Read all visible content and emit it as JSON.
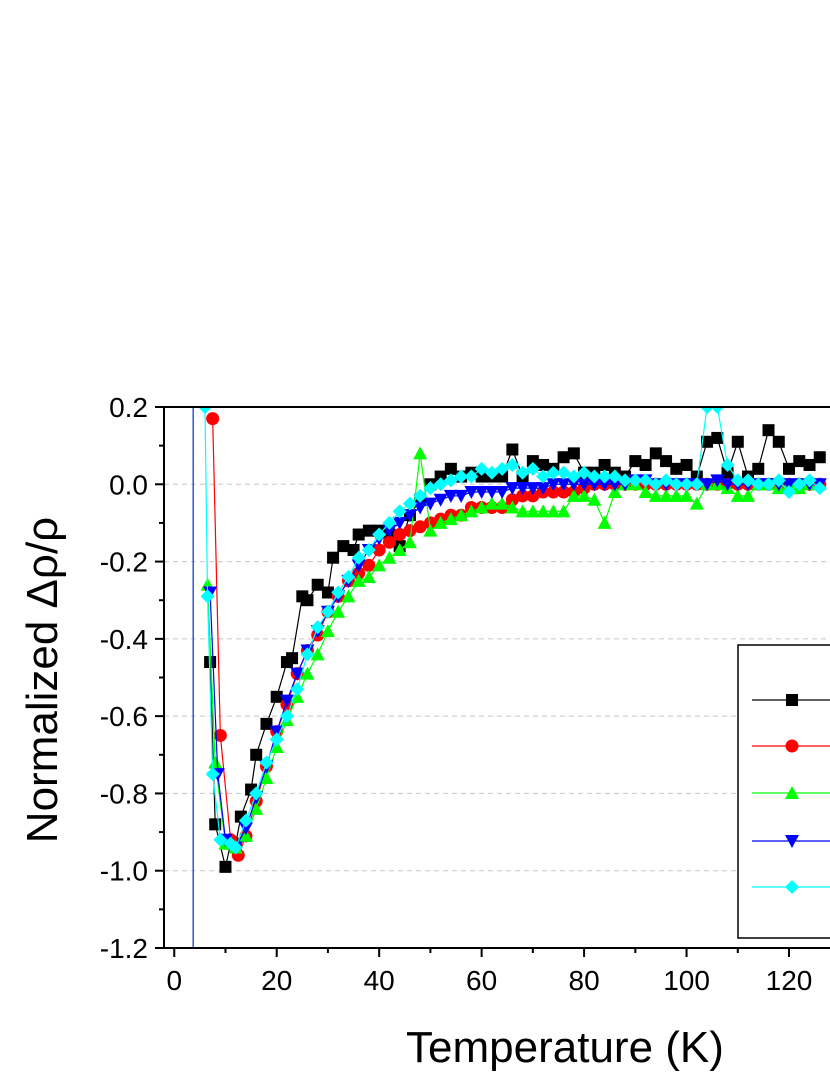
{
  "chart_data": {
    "type": "line",
    "xlabel": "Temperature (K)",
    "ylabel": "Normalized Δρ/ρ",
    "xlim": [
      -2,
      128
    ],
    "ylim": [
      -1.2,
      0.2
    ],
    "x_ticks": [
      "0",
      "20",
      "40",
      "60",
      "80",
      "100",
      "120"
    ],
    "y_ticks": [
      "0.2",
      "0.0",
      "-0.2",
      "-0.4",
      "-0.6",
      "-0.8",
      "-1.0",
      "-1.2"
    ],
    "grid": "horizontal dashed at major y ticks",
    "vline_x": 3.7,
    "legend_position": "right, partially cropped",
    "series": [
      {
        "color": "#000000",
        "marker": "square",
        "line_color": "#000000",
        "x": [
          7,
          8,
          10,
          11,
          12,
          13,
          15,
          16,
          18,
          20,
          22,
          23,
          25,
          26,
          28,
          30,
          31,
          33,
          35,
          36,
          38,
          40,
          42,
          44,
          46,
          48,
          50,
          52,
          54,
          56,
          58,
          60,
          62,
          64,
          66,
          68,
          70,
          72,
          74,
          76,
          78,
          80,
          82,
          84,
          86,
          88,
          90,
          92,
          94,
          96,
          98,
          100,
          102,
          104,
          106,
          108,
          110,
          112,
          114,
          116,
          118,
          120,
          122,
          124,
          126
        ],
        "y": [
          -0.46,
          -0.88,
          -0.99,
          -0.93,
          -0.93,
          -0.86,
          -0.79,
          -0.7,
          -0.62,
          -0.55,
          -0.46,
          -0.45,
          -0.29,
          -0.3,
          -0.26,
          -0.28,
          -0.19,
          -0.16,
          -0.17,
          -0.13,
          -0.12,
          -0.12,
          -0.13,
          -0.16,
          -0.08,
          -0.04,
          0.0,
          0.02,
          0.04,
          0.02,
          0.03,
          0.02,
          0.02,
          0.02,
          0.09,
          0.02,
          0.06,
          0.05,
          0.04,
          0.07,
          0.08,
          0.03,
          0.03,
          0.05,
          0.03,
          0.02,
          0.06,
          0.05,
          0.08,
          0.06,
          0.04,
          0.05,
          0.02,
          0.11,
          0.12,
          0.03,
          0.11,
          0.02,
          0.04,
          0.14,
          0.11,
          0.04,
          0.06,
          0.05,
          0.07
        ]
      },
      {
        "color": "#ff0000",
        "marker": "circle",
        "line_color": "#ff0000",
        "x": [
          7.5,
          9,
          11,
          12.5,
          14,
          16,
          18,
          20,
          22,
          24,
          26,
          28,
          30,
          32,
          34,
          36,
          38,
          40,
          42,
          44,
          46,
          48,
          50,
          52,
          54,
          56,
          58,
          60,
          62,
          64,
          66,
          68,
          70,
          72,
          74,
          76,
          78,
          80,
          82,
          84,
          86,
          88,
          90,
          92,
          94,
          96,
          98,
          100,
          102,
          104,
          106,
          108,
          110,
          112,
          114,
          116,
          118,
          120,
          122,
          124,
          126
        ],
        "y": [
          0.17,
          -0.65,
          -0.92,
          -0.96,
          -0.91,
          -0.82,
          -0.73,
          -0.64,
          -0.57,
          -0.49,
          -0.43,
          -0.39,
          -0.33,
          -0.29,
          -0.25,
          -0.23,
          -0.21,
          -0.17,
          -0.15,
          -0.13,
          -0.12,
          -0.11,
          -0.1,
          -0.09,
          -0.08,
          -0.08,
          -0.06,
          -0.06,
          -0.06,
          -0.06,
          -0.04,
          -0.03,
          -0.03,
          -0.02,
          -0.02,
          -0.02,
          -0.02,
          -0.01,
          0.0,
          0.0,
          0.0,
          0.0,
          0.0,
          0.0,
          0.0,
          0.0,
          0.0,
          0.0,
          0.0,
          0.0,
          0.0,
          0.0,
          0.0,
          0.0,
          0.0,
          0.0,
          0.0,
          0.0,
          0.0,
          0.0,
          0.0
        ]
      },
      {
        "color": "#00ff00",
        "marker": "triangle-up",
        "line_color": "#00ff00",
        "x": [
          6.5,
          8,
          10,
          12,
          14,
          16,
          18,
          20,
          22,
          24,
          26,
          28,
          30,
          32,
          34,
          36,
          38,
          40,
          42,
          44,
          46,
          48,
          50,
          52,
          54,
          56,
          58,
          60,
          62,
          64,
          66,
          68,
          70,
          72,
          74,
          76,
          78,
          80,
          82,
          84,
          86,
          88,
          90,
          92,
          94,
          96,
          98,
          100,
          102,
          104,
          106,
          108,
          110,
          112,
          114,
          116,
          118,
          120,
          122,
          124,
          126
        ],
        "y": [
          -0.26,
          -0.72,
          -0.93,
          -0.94,
          -0.91,
          -0.84,
          -0.76,
          -0.68,
          -0.61,
          -0.55,
          -0.49,
          -0.44,
          -0.38,
          -0.33,
          -0.29,
          -0.25,
          -0.24,
          -0.21,
          -0.19,
          -0.17,
          -0.15,
          0.08,
          -0.12,
          -0.1,
          -0.09,
          -0.08,
          -0.07,
          -0.06,
          -0.05,
          -0.05,
          -0.06,
          -0.07,
          -0.07,
          -0.07,
          -0.07,
          -0.07,
          -0.03,
          -0.03,
          -0.04,
          -0.1,
          -0.02,
          0.0,
          0.0,
          -0.02,
          -0.03,
          -0.03,
          -0.03,
          -0.03,
          -0.05,
          0.0,
          0.0,
          -0.01,
          -0.03,
          -0.03,
          0.0,
          0.0,
          -0.01,
          0.0,
          -0.01,
          0.0,
          0.0
        ]
      },
      {
        "color": "#0000ff",
        "marker": "triangle-down",
        "line_color": "#0000ff",
        "x": [
          7,
          8.5,
          10,
          12,
          14,
          16,
          18,
          20,
          22,
          24,
          26,
          28,
          30,
          32,
          34,
          36,
          38,
          40,
          42,
          44,
          46,
          48,
          50,
          52,
          54,
          56,
          58,
          60,
          62,
          64,
          66,
          68,
          70,
          72,
          74,
          76,
          78,
          80,
          82,
          84,
          86,
          88,
          90,
          92,
          94,
          96,
          98,
          100,
          102,
          104,
          106,
          108,
          110,
          112,
          114,
          116,
          118,
          120,
          122,
          124,
          126
        ],
        "y": [
          -0.28,
          -0.75,
          -0.92,
          -0.94,
          -0.89,
          -0.81,
          -0.73,
          -0.64,
          -0.56,
          -0.49,
          -0.43,
          -0.38,
          -0.33,
          -0.29,
          -0.25,
          -0.21,
          -0.17,
          -0.14,
          -0.12,
          -0.1,
          -0.08,
          -0.06,
          -0.05,
          -0.04,
          -0.03,
          -0.03,
          -0.02,
          -0.02,
          -0.02,
          -0.02,
          -0.01,
          -0.01,
          -0.01,
          -0.01,
          0.0,
          0.0,
          0.0,
          0.0,
          0.0,
          0.0,
          0.0,
          0.0,
          0.01,
          0.01,
          0.0,
          0.0,
          0.0,
          0.0,
          0.0,
          0.0,
          0.01,
          0.0,
          0.0,
          0.0,
          0.0,
          0.0,
          0.0,
          0.0,
          0.0,
          0.0,
          0.0
        ]
      },
      {
        "color": "#00ffff",
        "marker": "diamond",
        "line_color": "#00ffff",
        "x": [
          6,
          6.5,
          7.5,
          9,
          11,
          12,
          14,
          16,
          18,
          20,
          22,
          24,
          26,
          28,
          30,
          32,
          34,
          36,
          38,
          40,
          42,
          44,
          46,
          48,
          50,
          52,
          54,
          56,
          58,
          60,
          62,
          64,
          66,
          68,
          70,
          72,
          74,
          76,
          78,
          80,
          82,
          84,
          86,
          88,
          90,
          92,
          94,
          96,
          98,
          100,
          102,
          104,
          106,
          108,
          110,
          112,
          114,
          116,
          118,
          120,
          122,
          124,
          126
        ],
        "y": [
          0.2,
          -0.29,
          -0.75,
          -0.92,
          -0.93,
          -0.94,
          -0.87,
          -0.8,
          -0.72,
          -0.66,
          -0.6,
          -0.53,
          -0.44,
          -0.37,
          -0.33,
          -0.28,
          -0.24,
          -0.19,
          -0.17,
          -0.13,
          -0.1,
          -0.07,
          -0.05,
          -0.03,
          -0.01,
          0.0,
          0.01,
          0.02,
          0.02,
          0.04,
          0.03,
          0.04,
          0.05,
          0.03,
          0.04,
          0.02,
          0.03,
          0.03,
          0.02,
          0.03,
          0.02,
          0.02,
          0.02,
          0.01,
          0.01,
          0.01,
          0.0,
          0.01,
          0.0,
          0.0,
          0.0,
          0.2,
          0.2,
          0.05,
          0.01,
          0.01,
          0.0,
          0.0,
          0.01,
          -0.02,
          0.0,
          0.01,
          -0.01
        ]
      }
    ]
  }
}
